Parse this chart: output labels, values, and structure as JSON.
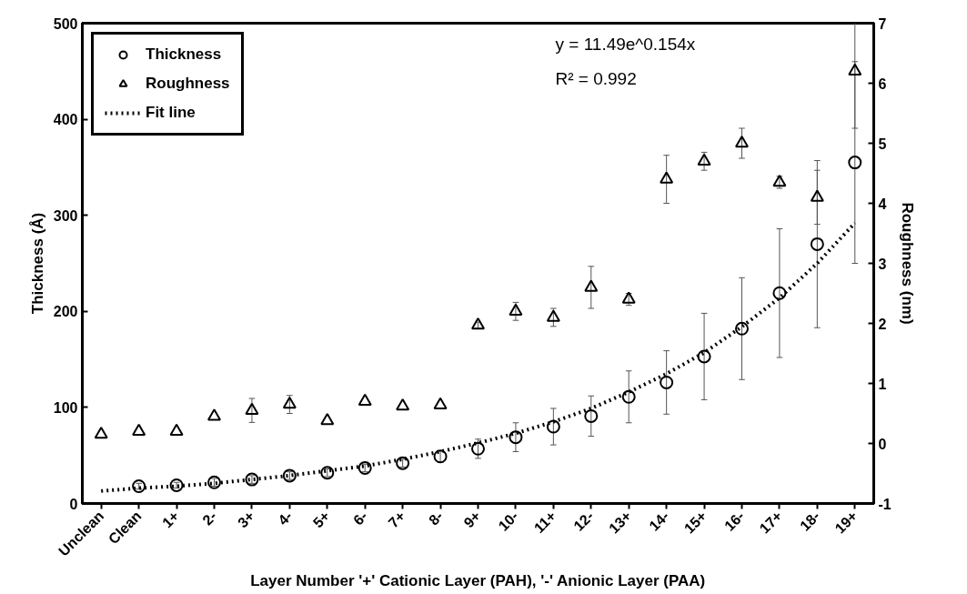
{
  "chart_data": {
    "type": "scatter",
    "xlabel": "Layer Number '+' Cationic Layer (PAH), '-' Anionic Layer (PAA)",
    "ylabel": "Thickness (Å)",
    "y2label": "Roughness (nm)",
    "categories": [
      "Unclean",
      "Clean",
      "1+",
      "2-",
      "3+",
      "4-",
      "5+",
      "6-",
      "7+",
      "8-",
      "9+",
      "10-",
      "11+",
      "12-",
      "13+",
      "14-",
      "15+",
      "16-",
      "17+",
      "18-",
      "19+"
    ],
    "series": [
      {
        "name": "Thickness",
        "color": "#000000",
        "marker": "circle",
        "values": [
          null,
          18,
          19,
          22,
          25,
          29,
          32,
          37,
          42,
          49,
          57,
          69,
          80,
          91,
          111,
          126,
          153,
          182,
          219,
          270,
          355
        ],
        "errors": [
          null,
          3,
          3,
          4,
          4,
          4,
          4,
          4,
          4,
          6,
          10,
          15,
          19,
          21,
          27,
          33,
          45,
          53,
          67,
          87,
          105
        ]
      },
      {
        "name": "Roughness",
        "color": "#000000",
        "marker": "triangle",
        "axis": "y2",
        "values": [
          0.15,
          0.2,
          0.2,
          0.45,
          0.55,
          0.65,
          0.38,
          0.7,
          0.62,
          0.64,
          1.97,
          2.2,
          2.1,
          2.6,
          2.4,
          4.4,
          4.7,
          5.0,
          4.35,
          4.1,
          6.2
        ],
        "errors": [
          null,
          null,
          null,
          null,
          0.2,
          0.15,
          null,
          null,
          null,
          null,
          0.05,
          0.15,
          0.15,
          0.35,
          0.1,
          0.4,
          0.15,
          0.25,
          0.1,
          0.45,
          0.95
        ]
      },
      {
        "name": "Fit line",
        "type": "line",
        "color": "#000000",
        "line_style": "dotted",
        "values": [
          13,
          16,
          18,
          21,
          25,
          29,
          34,
          39,
          46,
          54,
          63,
          73,
          85,
          99,
          116,
          135,
          157,
          184,
          214,
          250,
          292
        ]
      }
    ],
    "ylim": [
      0,
      500
    ],
    "yticks": [
      0,
      100,
      200,
      300,
      400,
      500
    ],
    "y2lim": [
      -1,
      7
    ],
    "y2ticks": [
      -1,
      0,
      1,
      2,
      3,
      4,
      5,
      6,
      7
    ],
    "annotations": [
      "y = 11.49e^0.154x",
      "R² = 0.992"
    ],
    "grid": false,
    "legend": "top left"
  }
}
